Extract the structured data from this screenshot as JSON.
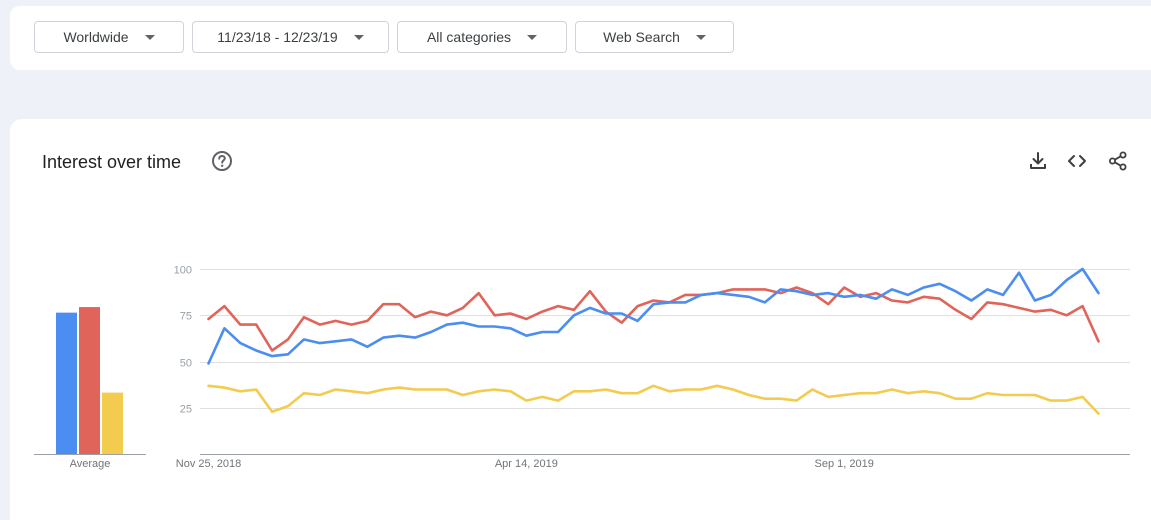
{
  "filters": {
    "region": "Worldwide",
    "date_range": "11/23/18 - 12/23/19",
    "category": "All categories",
    "search_type": "Web Search"
  },
  "card": {
    "title": "Interest over time",
    "help_icon": "help-circle-icon",
    "actions": [
      "download-icon",
      "embed-code-icon",
      "share-icon"
    ]
  },
  "colors": {
    "blue": "#4b8df0",
    "red": "#e0645a",
    "yellow": "#f3cb4f"
  },
  "chart_data": [
    {
      "type": "bar",
      "categories": [
        "Average"
      ],
      "xlabel": "Average",
      "series": [
        {
          "color": "#4b8df0",
          "values": [
            76
          ]
        },
        {
          "color": "#e0645a",
          "values": [
            79
          ]
        },
        {
          "color": "#f3cb4f",
          "values": [
            33
          ]
        }
      ],
      "ylim": [
        0,
        100
      ]
    },
    {
      "type": "line",
      "title": "Interest over time",
      "x_start": "2018-11-25",
      "x_step_days": 7,
      "x_tick_labels": [
        "Nov 25, 2018",
        "Apr 14, 2019",
        "Sep 1, 2019"
      ],
      "y_ticks": [
        100,
        75,
        50,
        25
      ],
      "ylim": [
        0,
        100
      ],
      "grid": true,
      "series": [
        {
          "color": "#4b8df0",
          "values": [
            49,
            68,
            60,
            56,
            53,
            54,
            62,
            60,
            61,
            62,
            58,
            63,
            64,
            63,
            66,
            70,
            71,
            69,
            69,
            68,
            64,
            66,
            66,
            75,
            79,
            76,
            76,
            72,
            81,
            82,
            82,
            86,
            87,
            86,
            85,
            82,
            89,
            88,
            86,
            87,
            85,
            86,
            84,
            89,
            86,
            90,
            92,
            88,
            83,
            89,
            86,
            98,
            83,
            86,
            94,
            100,
            87
          ]
        },
        {
          "color": "#e0645a",
          "values": [
            73,
            80,
            70,
            70,
            56,
            62,
            74,
            70,
            72,
            70,
            72,
            81,
            81,
            74,
            77,
            75,
            79,
            87,
            75,
            76,
            73,
            77,
            80,
            78,
            88,
            77,
            71,
            80,
            83,
            82,
            86,
            86,
            87,
            89,
            89,
            89,
            87,
            90,
            87,
            81,
            90,
            85,
            87,
            83,
            82,
            85,
            84,
            78,
            73,
            82,
            81,
            79,
            77,
            78,
            75,
            80,
            61
          ]
        },
        {
          "color": "#f3cb4f",
          "values": [
            37,
            36,
            34,
            35,
            23,
            26,
            33,
            32,
            35,
            34,
            33,
            35,
            36,
            35,
            35,
            35,
            32,
            34,
            35,
            34,
            29,
            31,
            29,
            34,
            34,
            35,
            33,
            33,
            37,
            34,
            35,
            35,
            37,
            35,
            32,
            30,
            30,
            29,
            35,
            31,
            32,
            33,
            33,
            35,
            33,
            34,
            33,
            30,
            30,
            33,
            32,
            32,
            32,
            29,
            29,
            31,
            22
          ]
        }
      ]
    }
  ]
}
